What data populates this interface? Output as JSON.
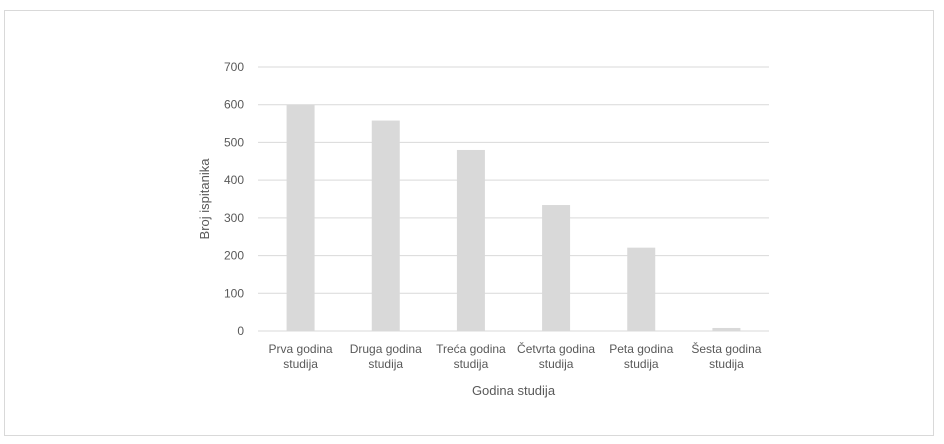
{
  "chart_data": {
    "type": "bar",
    "categories": [
      [
        "Prva godina",
        "studija"
      ],
      [
        "Druga godina",
        "studija"
      ],
      [
        "Treća godina",
        "studija"
      ],
      [
        "Četvrta godina",
        "studija"
      ],
      [
        "Peta godina",
        "studija"
      ],
      [
        "Šesta godina",
        "studija"
      ]
    ],
    "values": [
      600,
      558,
      480,
      334,
      221,
      8
    ],
    "title": "",
    "xlabel": "Godina studija",
    "ylabel": "Broj ispitanika",
    "ylim": [
      0,
      700
    ],
    "yticks": [
      0,
      100,
      200,
      300,
      400,
      500,
      600,
      700
    ],
    "grid": true,
    "legend": "none",
    "colors": {
      "bar": "#d9d9d9",
      "grid": "#d9d9d9",
      "axis": "#d9d9d9",
      "text": "#595959"
    }
  }
}
